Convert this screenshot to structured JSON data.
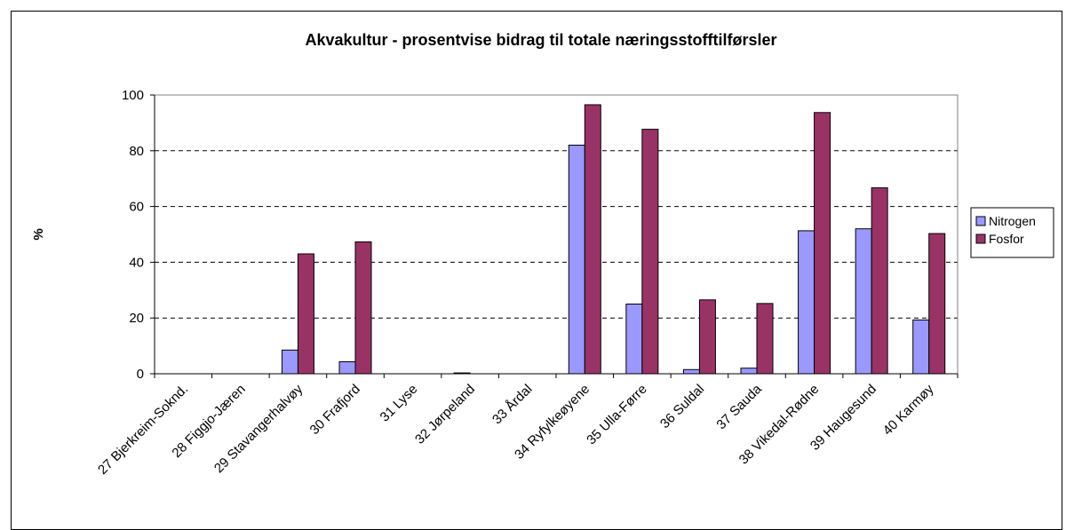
{
  "chart_data": {
    "type": "bar",
    "title": "Akvakultur - prosentvise bidrag til totale næringsstofftilførsler",
    "ylabel": "%",
    "xlabel": "",
    "ylim": [
      0,
      100
    ],
    "yticks": [
      "0",
      "20",
      "40",
      "60",
      "80",
      "100"
    ],
    "grid": "horizontal dashed",
    "legend_position": "right",
    "categories": [
      "27 Bjerkreim-Soknd.",
      "28 Figgjo-Jæren",
      "29 Stavangerhalvøy",
      "30 Frafjord",
      "31 Lyse",
      "32 Jørpeland",
      "33 Årdal",
      "34 Ryfylkeøyene",
      "35 Ulla-Førre",
      "36 Suldal",
      "37 Sauda",
      "38 Vikedal-Rødne",
      "39 Haugesund",
      "40 Karmøy"
    ],
    "series": [
      {
        "name": "Nitrogen",
        "color": "#9999ff",
        "values": [
          0,
          0,
          8.5,
          4.3,
          0,
          0.3,
          0,
          82,
          25,
          1.5,
          2,
          51.3,
          52,
          19.3
        ]
      },
      {
        "name": "Fosfor",
        "color": "#993366",
        "values": [
          0,
          0,
          43,
          47.3,
          0,
          0,
          0,
          96.5,
          87.7,
          26.5,
          25.2,
          93.7,
          66.7,
          50.3
        ]
      }
    ]
  }
}
